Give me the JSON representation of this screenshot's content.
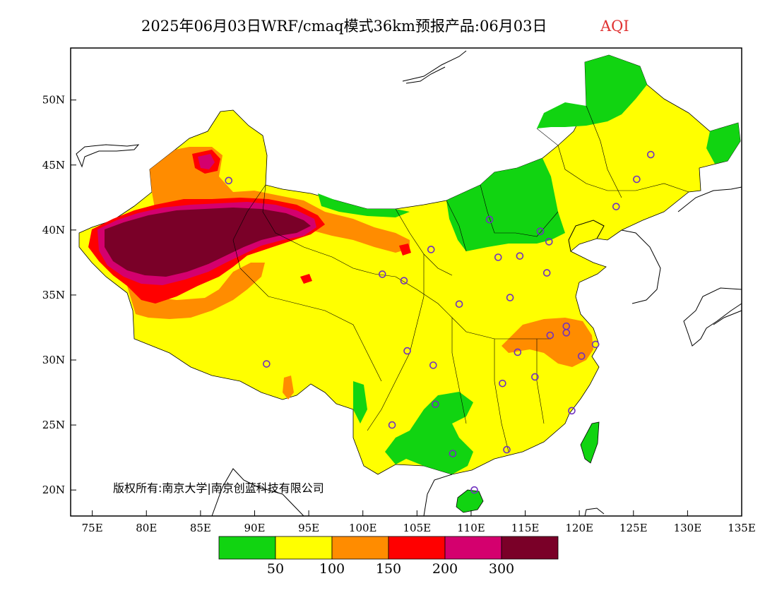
{
  "title": {
    "main": "2025年06月03日WRF/cmaq模式36km预报产品:06月03日",
    "variable": "AQI",
    "variable_color": "#e03030"
  },
  "axes": {
    "x_ticks": [
      "75E",
      "80E",
      "85E",
      "90E",
      "95E",
      "100E",
      "105E",
      "110E",
      "115E",
      "120E",
      "125E",
      "130E",
      "135E"
    ],
    "y_ticks": [
      "50N",
      "45N",
      "40N",
      "35N",
      "30N",
      "25N",
      "20N"
    ],
    "lon_range": [
      73,
      135
    ],
    "lat_range": [
      18,
      54
    ]
  },
  "copyright": "版权所有:南京大学|南京创蓝科技有限公司",
  "legend": {
    "colors": [
      "#11d411",
      "#ffff00",
      "#ff8c00",
      "#ff0000",
      "#d4006e",
      "#7a0028"
    ],
    "labels": [
      "50",
      "100",
      "150",
      "200",
      "300"
    ]
  },
  "cities": [
    {
      "lon": 87.6,
      "lat": 43.8
    },
    {
      "lon": 91.1,
      "lat": 29.7
    },
    {
      "lon": 101.8,
      "lat": 36.6
    },
    {
      "lon": 103.8,
      "lat": 36.1
    },
    {
      "lon": 106.3,
      "lat": 38.5
    },
    {
      "lon": 111.7,
      "lat": 40.8
    },
    {
      "lon": 116.4,
      "lat": 39.9
    },
    {
      "lon": 117.2,
      "lat": 39.1
    },
    {
      "lon": 114.5,
      "lat": 38.0
    },
    {
      "lon": 112.5,
      "lat": 37.9
    },
    {
      "lon": 117.0,
      "lat": 36.7
    },
    {
      "lon": 113.6,
      "lat": 34.8
    },
    {
      "lon": 108.9,
      "lat": 34.3
    },
    {
      "lon": 104.1,
      "lat": 30.7
    },
    {
      "lon": 106.5,
      "lat": 29.6
    },
    {
      "lon": 106.7,
      "lat": 26.6
    },
    {
      "lon": 102.7,
      "lat": 25.0
    },
    {
      "lon": 108.3,
      "lat": 22.8
    },
    {
      "lon": 113.3,
      "lat": 23.1
    },
    {
      "lon": 110.3,
      "lat": 20.0
    },
    {
      "lon": 119.3,
      "lat": 26.1
    },
    {
      "lon": 115.9,
      "lat": 28.7
    },
    {
      "lon": 112.9,
      "lat": 28.2
    },
    {
      "lon": 114.3,
      "lat": 30.6
    },
    {
      "lon": 117.3,
      "lat": 31.9
    },
    {
      "lon": 118.8,
      "lat": 32.1
    },
    {
      "lon": 120.2,
      "lat": 30.3
    },
    {
      "lon": 121.5,
      "lat": 31.2
    },
    {
      "lon": 123.4,
      "lat": 41.8
    },
    {
      "lon": 125.3,
      "lat": 43.9
    },
    {
      "lon": 126.6,
      "lat": 45.8
    },
    {
      "lon": 118.8,
      "lat": 32.6
    }
  ]
}
